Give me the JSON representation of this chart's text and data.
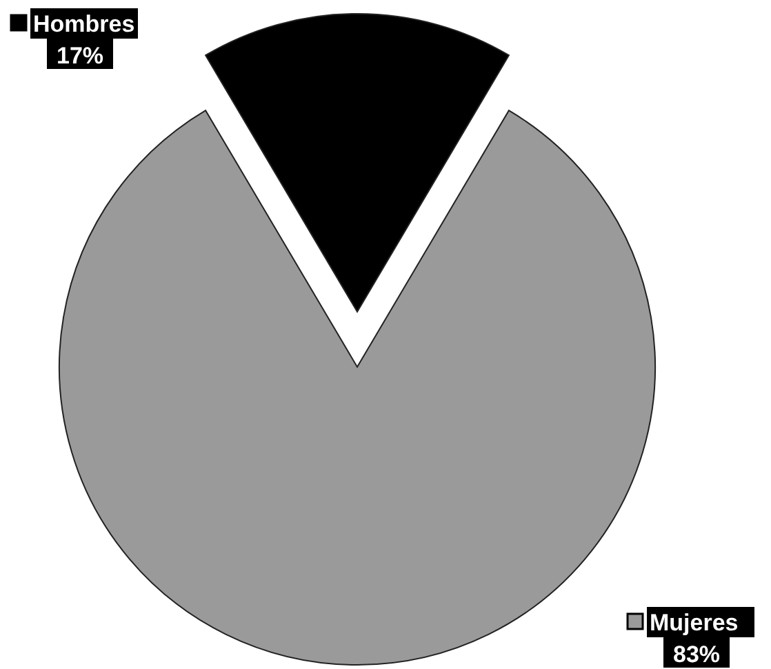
{
  "chart_data": {
    "type": "pie",
    "categories": [
      "Hombres",
      "Mujeres"
    ],
    "values": [
      17,
      83
    ],
    "colors": [
      "#000000",
      "#9a9a9a"
    ],
    "value_labels": [
      "17%",
      "83%"
    ]
  }
}
